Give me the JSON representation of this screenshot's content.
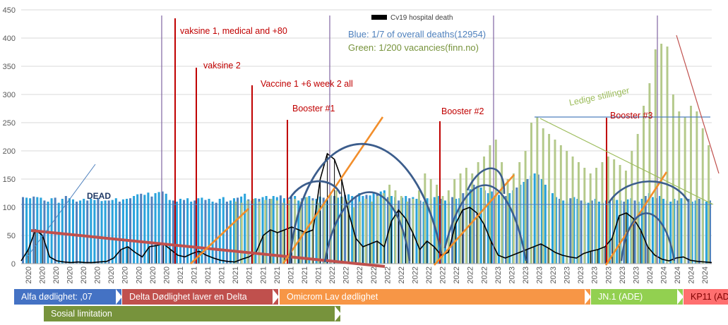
{
  "colors": {
    "blue_bars": "#29a3dc",
    "blue_bars_alt": "#4f81bd",
    "green_bars": "#b4c98a",
    "black_line": "#000000",
    "dark_blue_curve": "#3c5d8c",
    "orange": "#f28e2b",
    "red_line": "#c0504d",
    "purple_line": "#8064a2",
    "grid": "#d9d9d9"
  },
  "chart_data": {
    "type": "bar",
    "ylim": [
      0,
      450
    ],
    "yticks": [
      0,
      50,
      100,
      150,
      200,
      250,
      300,
      350,
      400,
      450
    ],
    "grid": true,
    "legend_label": "Cv19 hospital death",
    "x_labels": [
      "2020",
      "2020",
      "2020",
      "2020",
      "2020",
      "2020",
      "2020",
      "2020",
      "2020",
      "2020",
      "2020",
      "2021",
      "2021",
      "2021",
      "2021",
      "2021",
      "2021",
      "2021",
      "2021",
      "2021",
      "2021",
      "2021",
      "2022",
      "2022",
      "2022",
      "2022",
      "2022",
      "2022",
      "2022",
      "2022",
      "2022",
      "2022",
      "2022",
      "2022",
      "2023",
      "2023",
      "2023",
      "2023",
      "2023",
      "2023",
      "2023",
      "2023",
      "2023",
      "2023",
      "2023",
      "2024",
      "2024",
      "2024",
      "2024",
      "2024"
    ],
    "series": [
      {
        "name": "Blue: 1/7 of overall deaths(12954)",
        "values": [
          118,
          117,
          116,
          119,
          118,
          117,
          112,
          110,
          116,
          117,
          108,
          115,
          120,
          116,
          114,
          110,
          112,
          115,
          112,
          115,
          113,
          116,
          111,
          112,
          112,
          113,
          116,
          110,
          114,
          115,
          116,
          120,
          123,
          124,
          122,
          126,
          119,
          125,
          127,
          128,
          124,
          113,
          112,
          110,
          115,
          113,
          116,
          110,
          112,
          116,
          117,
          113,
          115,
          110,
          108,
          115,
          118,
          110,
          112,
          116,
          117,
          119,
          124,
          114,
          112,
          116,
          115,
          118,
          120,
          115,
          120,
          118,
          121,
          116,
          117,
          118,
          120,
          112,
          116,
          118,
          120,
          116,
          115,
          119,
          117,
          115,
          121,
          120,
          117,
          119,
          122,
          123,
          120,
          118,
          125,
          120,
          122,
          121,
          126,
          124,
          128,
          130,
          118,
          120,
          118,
          112,
          117,
          120,
          116,
          118,
          115,
          112,
          110,
          116,
          115,
          118,
          120,
          115,
          112,
          110,
          118,
          115,
          116,
          125,
          128,
          132,
          140,
          138,
          135,
          130,
          125,
          128,
          120,
          122,
          118,
          120,
          125,
          130,
          135,
          140,
          145,
          150,
          156,
          160,
          158,
          150,
          140,
          130,
          125,
          118,
          115,
          112,
          110,
          116,
          118,
          115,
          112,
          110,
          108,
          112,
          115,
          110,
          108,
          112,
          110,
          115,
          113,
          112,
          110,
          114,
          116,
          112,
          110,
          115,
          120,
          125,
          118,
          116,
          120,
          115,
          112,
          110,
          115,
          112,
          116,
          118,
          115,
          110,
          112,
          115,
          113,
          110,
          112
        ]
      },
      {
        "name": "Green: 1/200 vacancies(finn.no)",
        "values": [
          110,
          108,
          112,
          115,
          110,
          113,
          115,
          112,
          108,
          113,
          115,
          110,
          118,
          112,
          108,
          110,
          125,
          130,
          118,
          112,
          100,
          110,
          115,
          110,
          120,
          125,
          140,
          130,
          120,
          110,
          115,
          130,
          160,
          150,
          140,
          120,
          130,
          150,
          160,
          170,
          160,
          180,
          190,
          210,
          220,
          180,
          150,
          160,
          180,
          200,
          250,
          260,
          240,
          230,
          220,
          210,
          200,
          190,
          180,
          170,
          160,
          170,
          180,
          190,
          185,
          175,
          165,
          200,
          230,
          280,
          320,
          380,
          390,
          385,
          300,
          270,
          260,
          280,
          270,
          240,
          210
        ]
      },
      {
        "name": "Cv19 hospital death",
        "values": [
          5,
          25,
          60,
          50,
          12,
          5,
          3,
          2,
          3,
          2,
          2,
          3,
          4,
          10,
          25,
          30,
          20,
          12,
          30,
          32,
          35,
          25,
          15,
          12,
          18,
          22,
          15,
          10,
          6,
          4,
          3,
          8,
          12,
          20,
          50,
          60,
          55,
          60,
          65,
          60,
          55,
          60,
          150,
          195,
          185,
          150,
          90,
          45,
          30,
          35,
          40,
          30,
          75,
          95,
          80,
          55,
          25,
          40,
          30,
          15,
          20,
          70,
          95,
          100,
          90,
          70,
          40,
          15,
          10,
          15,
          20,
          25,
          30,
          35,
          28,
          20,
          15,
          12,
          10,
          18,
          22,
          25,
          30,
          45,
          85,
          90,
          80,
          60,
          30,
          15,
          8,
          5,
          10,
          12,
          6,
          4,
          3,
          2
        ]
      }
    ],
    "annotations": [
      {
        "text": "vaksine 1, medical and +80",
        "color": "#c00000"
      },
      {
        "text": "vaksine 2",
        "color": "#c00000"
      },
      {
        "text": "Vaccine 1 +6 week 2 all",
        "color": "#c00000"
      },
      {
        "text": "Booster #1",
        "color": "#c00000"
      },
      {
        "text": "Booster #2",
        "color": "#c00000"
      },
      {
        "text": "Booster #3",
        "color": "#c00000"
      },
      {
        "text": "Ledige stillinger",
        "color": "#9bbb59"
      },
      {
        "text": "DEAD",
        "color": "#1f3864"
      },
      {
        "text": "Blue: 1/7 of overall deaths(12954)",
        "color": "#4f81bd"
      },
      {
        "text": "Green: 1/200 vacancies(finn.no)",
        "color": "#77933c"
      }
    ]
  },
  "phases": [
    {
      "label": "Alfa  dødlighet: ,07",
      "color": "#4472c4"
    },
    {
      "label": "Delta   Dødlighet laver en Delta",
      "color": "#c0504d"
    },
    {
      "label": "Omicrom Lav dødlighet",
      "color": "#f79646"
    },
    {
      "label": "JN.1 (ADE)",
      "color": "#92d050"
    },
    {
      "label": "KP11  (AD",
      "color": "#ff6f6f"
    },
    {
      "label": "Sosial limitation",
      "color": "#77933c"
    }
  ]
}
